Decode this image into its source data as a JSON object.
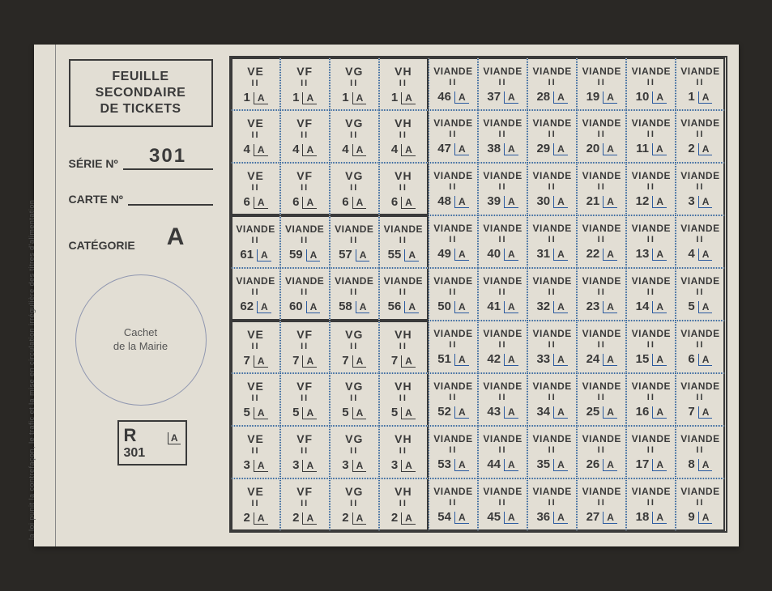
{
  "sideText": "la loi punit la contrefaçon, le trafic et la mise en circulation irrégulière des titres d'alimentation",
  "header": {
    "l1": "FEUILLE",
    "l2": "SECONDAIRE",
    "l3": "DE TICKETS"
  },
  "fields": {
    "serieLabel": "SÉRIE Nº",
    "serieValue": "301",
    "carteLabel": "CARTE Nº",
    "carteValue": "",
    "catLabel": "CATÉGORIE",
    "catValue": "A"
  },
  "cachet": {
    "l1": "Cachet",
    "l2": "de la Mairie"
  },
  "rbox": {
    "r": "R",
    "a": "A",
    "num": "301"
  },
  "cellLabels": {
    "viande": "VIANDE",
    "ii": "II",
    "a": "A",
    "ve": "VE",
    "vf": "VF",
    "vg": "VG",
    "vh": "VH"
  },
  "gridColors": {
    "dotBorder": "#3a6aa0",
    "heavyBorder": "#3a3a3a",
    "background": "#e2ded4",
    "text": "#3a3a3a"
  },
  "rows": [
    {
      "prefixNums": [
        1,
        1,
        1,
        1
      ],
      "viandeNums": [
        46,
        37,
        28,
        19,
        10,
        1
      ]
    },
    {
      "prefixNums": [
        4,
        4,
        4,
        4
      ],
      "viandeNums": [
        47,
        38,
        29,
        20,
        11,
        2
      ]
    },
    {
      "prefixNums": [
        6,
        6,
        6,
        6
      ],
      "viandeNums": [
        48,
        39,
        30,
        21,
        12,
        3
      ]
    },
    {
      "prefixType": "viande",
      "prefixNums": [
        61,
        59,
        57,
        55
      ],
      "viandeNums": [
        49,
        40,
        31,
        22,
        13,
        4
      ]
    },
    {
      "prefixType": "viande",
      "prefixNums": [
        62,
        60,
        58,
        56
      ],
      "viandeNums": [
        50,
        41,
        32,
        23,
        14,
        5
      ]
    },
    {
      "prefixNums": [
        7,
        7,
        7,
        7
      ],
      "viandeNums": [
        51,
        42,
        33,
        24,
        15,
        6
      ]
    },
    {
      "prefixNums": [
        5,
        5,
        5,
        5
      ],
      "viandeNums": [
        52,
        43,
        34,
        25,
        16,
        7
      ]
    },
    {
      "prefixNums": [
        3,
        3,
        3,
        3
      ],
      "viandeNums": [
        53,
        44,
        35,
        26,
        17,
        8
      ]
    },
    {
      "prefixNums": [
        2,
        2,
        2,
        2
      ],
      "viandeNums": [
        54,
        45,
        36,
        27,
        18,
        9
      ]
    }
  ],
  "prefixCodes": [
    "ve",
    "vf",
    "vg",
    "vh"
  ],
  "groups": {
    "comment": "heavy-border groupings: VE..VH block rows 0-2, viande block rows 3-4, VE..VH block rows 5-8"
  }
}
